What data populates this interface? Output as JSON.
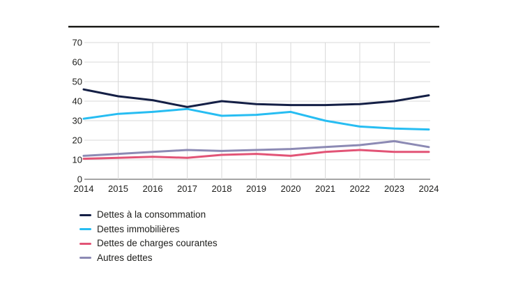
{
  "chart_data": {
    "type": "line",
    "title": "",
    "xlabel": "",
    "ylabel": "",
    "x": [
      "2014",
      "2015",
      "2016",
      "2017",
      "2018",
      "2019",
      "2020",
      "2021",
      "2022",
      "2023",
      "2024"
    ],
    "ylim": [
      0,
      70
    ],
    "ytick_step": 10,
    "yticks": [
      0,
      10,
      20,
      30,
      40,
      50,
      60,
      70
    ],
    "grid": true,
    "legend_position": "bottom-left",
    "series": [
      {
        "name": "Dettes à la consommation",
        "color": "#141f45",
        "values": [
          46,
          42.5,
          40.5,
          37,
          40,
          38.5,
          38,
          38,
          38.5,
          40,
          43
        ]
      },
      {
        "name": "Dettes immobilières",
        "color": "#27bdf2",
        "values": [
          31,
          33.5,
          34.5,
          36,
          32.5,
          33,
          34.5,
          30,
          27,
          26,
          25.5
        ]
      },
      {
        "name": "Dettes de charges courantes",
        "color": "#e25476",
        "values": [
          10.5,
          11,
          11.5,
          11,
          12.5,
          13,
          12,
          14,
          15,
          14,
          14
        ]
      },
      {
        "name": "Autres dettes",
        "color": "#8c8ab4",
        "values": [
          12,
          13,
          14,
          15,
          14.5,
          15,
          15.5,
          16.5,
          17.5,
          19.5,
          16.5
        ]
      }
    ]
  },
  "style": {
    "grid_color": "#d8d8d8",
    "axis_line_color": "#878787",
    "tick_label_color": "#1d1d1b",
    "top_rule_color": "#1d1d1b",
    "background_color": "#ffffff"
  }
}
